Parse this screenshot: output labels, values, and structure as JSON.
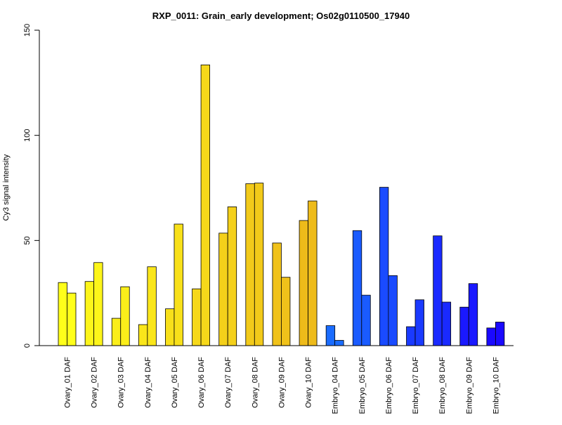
{
  "chart_data": {
    "type": "bar",
    "title": "RXP_0011: Grain_early development; Os02g0110500_17940",
    "ylabel": "Cy3 signal intensity",
    "xlabel": "",
    "ylim": [
      0,
      150
    ],
    "yticks": [
      0,
      50,
      100,
      150
    ],
    "grid": false,
    "categories": [
      "Ovary_01 DAF",
      "Ovary_02 DAF",
      "Ovary_03 DAF",
      "Ovary_04 DAF",
      "Ovary_05 DAF",
      "Ovary_06 DAF",
      "Ovary_07 DAF",
      "Ovary_08 DAF",
      "Ovary_09 DAF",
      "Ovary_10 DAF",
      "Embryo_04 DAF",
      "Embryo_05 DAF",
      "Embryo_06 DAF",
      "Embryo_07 DAF",
      "Embryo_08 DAF",
      "Embryo_09 DAF",
      "Embryo_10 DAF"
    ],
    "series": [
      {
        "values": [
          30,
          30.5,
          13,
          10,
          17.5,
          27,
          53.5,
          77,
          48.8,
          59.5,
          9.5,
          54.7,
          75.3,
          9,
          52.2,
          18.3,
          8.4
        ]
      },
      {
        "values": [
          25,
          39.5,
          28,
          37.5,
          57.8,
          133.5,
          66,
          77.3,
          32.5,
          68.8,
          2.5,
          24,
          33.3,
          21.8,
          20.7,
          29.5,
          11.2
        ]
      }
    ],
    "colors": [
      "#ffff1a",
      "#fdf51a",
      "#fbee1a",
      "#fae61a",
      "#f8e01a",
      "#f6d81a",
      "#f4d01a",
      "#f2ca1a",
      "#f0c21a",
      "#eebb1a",
      "#1a6cff",
      "#1a5bff",
      "#1a4bff",
      "#1a3aff",
      "#1a2aff",
      "#1a19ff",
      "#1a09ff"
    ]
  }
}
